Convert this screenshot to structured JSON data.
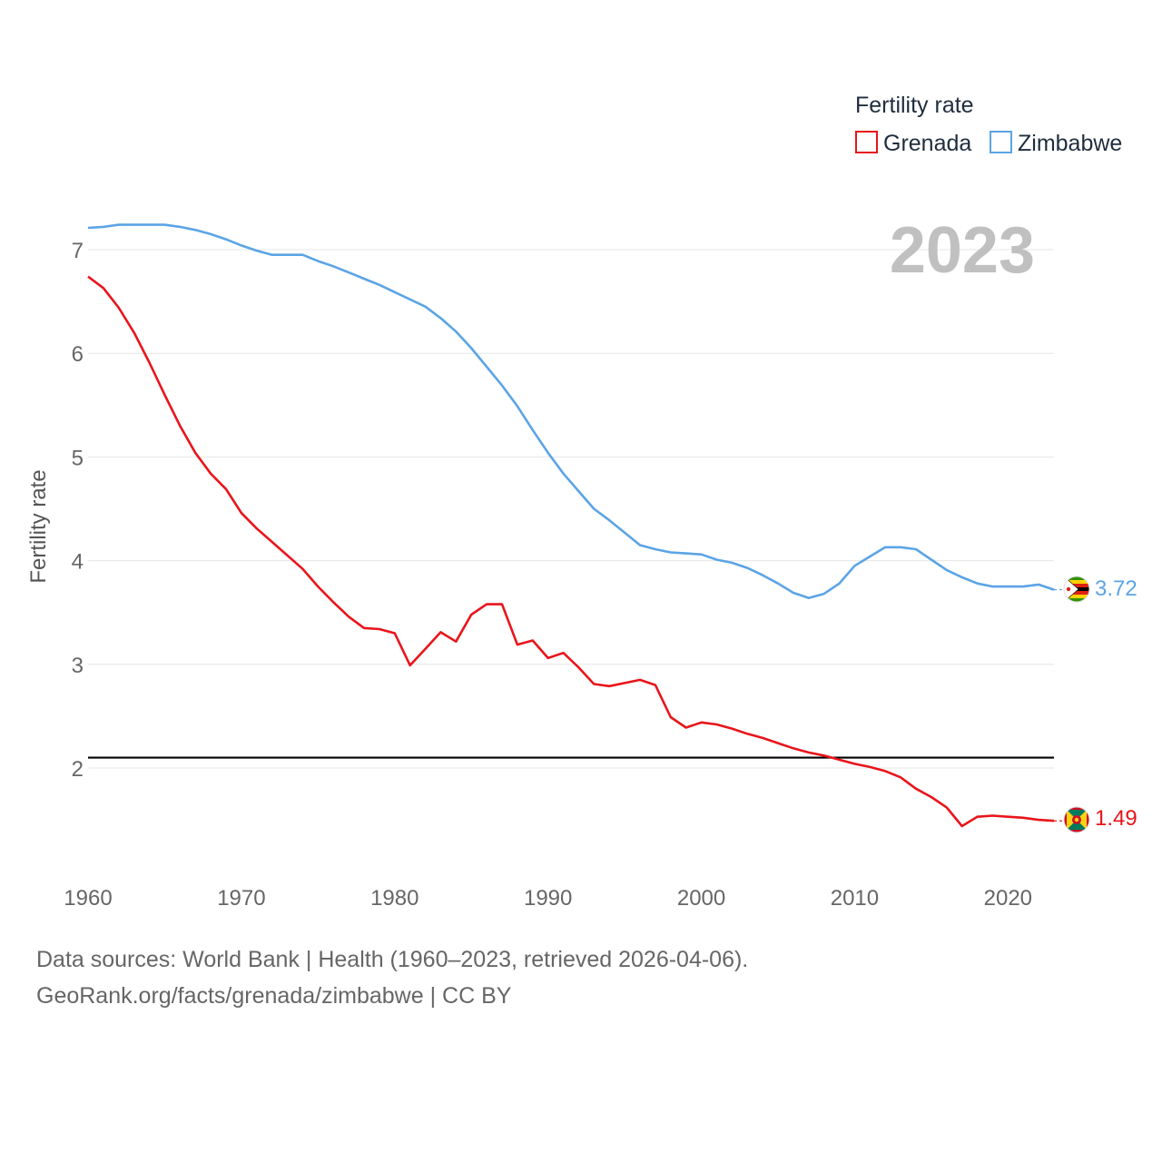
{
  "chart_data": {
    "type": "line",
    "legend_title": "Fertility rate",
    "ylabel": "Fertility rate",
    "ylim": [
      1.0,
      7.5
    ],
    "xlim": [
      1960,
      2023
    ],
    "yticks": [
      2,
      3,
      4,
      5,
      6,
      7
    ],
    "xticks": [
      1960,
      1970,
      1980,
      1990,
      2000,
      2010,
      2020
    ],
    "reference_line": 2.1,
    "year_label": "2023",
    "legend_position": "top-right",
    "grid": true,
    "x": [
      1960,
      1961,
      1962,
      1963,
      1964,
      1965,
      1966,
      1967,
      1968,
      1969,
      1970,
      1971,
      1972,
      1973,
      1974,
      1975,
      1976,
      1977,
      1978,
      1979,
      1980,
      1981,
      1982,
      1983,
      1984,
      1985,
      1986,
      1987,
      1988,
      1989,
      1990,
      1991,
      1992,
      1993,
      1994,
      1995,
      1996,
      1997,
      1998,
      1999,
      2000,
      2001,
      2002,
      2003,
      2004,
      2005,
      2006,
      2007,
      2008,
      2009,
      2010,
      2011,
      2012,
      2013,
      2014,
      2015,
      2016,
      2017,
      2018,
      2019,
      2020,
      2021,
      2022,
      2023
    ],
    "series": [
      {
        "name": "Grenada",
        "color": "#e8151b",
        "end_label": "1.49",
        "flag": "grenada-flag-icon",
        "values": [
          6.74,
          6.63,
          6.44,
          6.2,
          5.91,
          5.6,
          5.3,
          5.04,
          4.84,
          4.69,
          4.46,
          4.31,
          4.18,
          4.05,
          3.92,
          3.75,
          3.6,
          3.46,
          3.35,
          3.34,
          3.3,
          2.99,
          3.15,
          3.31,
          3.22,
          3.48,
          3.58,
          3.58,
          3.19,
          3.23,
          3.06,
          3.11,
          2.97,
          2.81,
          2.79,
          2.82,
          2.85,
          2.8,
          2.49,
          2.39,
          2.44,
          2.42,
          2.38,
          2.33,
          2.29,
          2.24,
          2.19,
          2.15,
          2.12,
          2.08,
          2.04,
          2.01,
          1.97,
          1.91,
          1.8,
          1.72,
          1.62,
          1.44,
          1.53,
          1.54,
          1.53,
          1.52,
          1.5,
          1.49
        ]
      },
      {
        "name": "Zimbabwe",
        "color": "#5ba4e5",
        "end_label": "3.72",
        "flag": "zimbabwe-flag-icon",
        "values": [
          7.21,
          7.22,
          7.24,
          7.24,
          7.24,
          7.24,
          7.22,
          7.19,
          7.15,
          7.1,
          7.04,
          6.99,
          6.95,
          6.95,
          6.95,
          6.89,
          6.84,
          6.78,
          6.72,
          6.66,
          6.59,
          6.52,
          6.45,
          6.34,
          6.21,
          6.05,
          5.87,
          5.69,
          5.49,
          5.26,
          5.04,
          4.84,
          4.67,
          4.5,
          4.39,
          4.27,
          4.15,
          4.11,
          4.08,
          4.07,
          4.06,
          4.01,
          3.98,
          3.93,
          3.86,
          3.78,
          3.69,
          3.64,
          3.68,
          3.78,
          3.95,
          4.04,
          4.13,
          4.13,
          4.11,
          4.01,
          3.91,
          3.84,
          3.78,
          3.75,
          3.75,
          3.75,
          3.77,
          3.72
        ]
      }
    ]
  },
  "footer": {
    "line1": "Data sources: World Bank | Health (1960–2023, retrieved 2026-04-06).",
    "line2": "GeoRank.org/facts/grenada/zimbabwe | CC BY"
  }
}
